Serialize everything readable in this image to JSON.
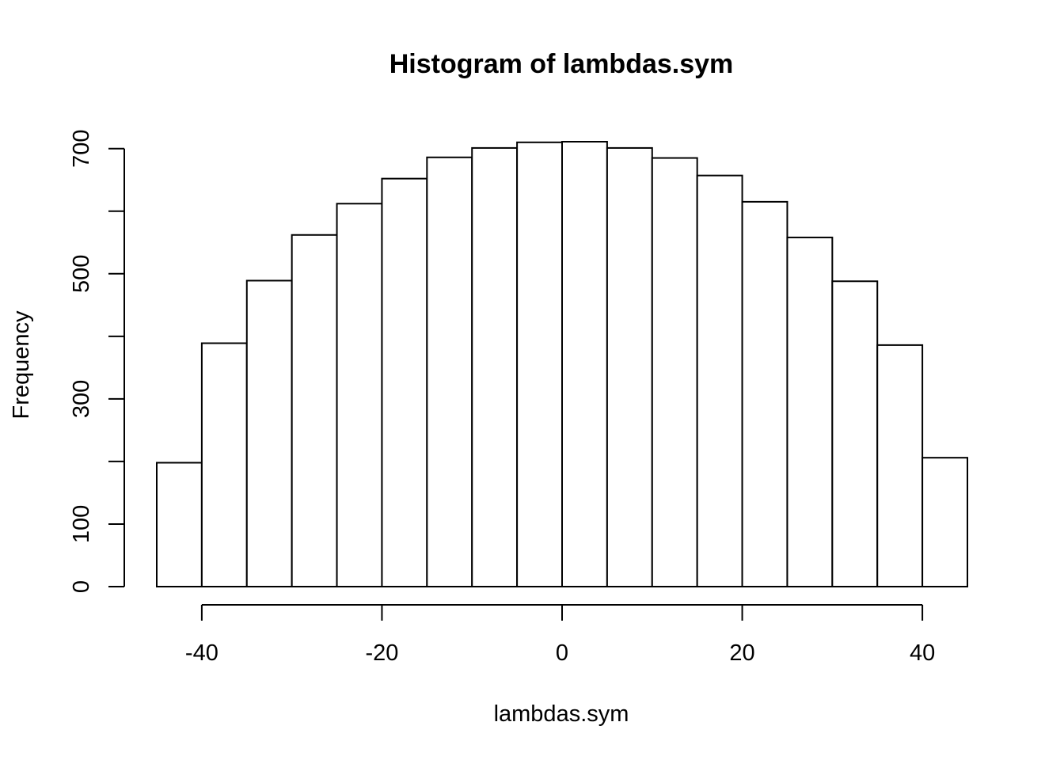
{
  "chart_data": {
    "type": "bar",
    "title": "Histogram of lambdas.sym",
    "xlabel": "lambdas.sym",
    "ylabel": "Frequency",
    "bin_edges": [
      -45,
      -40,
      -35,
      -30,
      -25,
      -20,
      -15,
      -10,
      -5,
      0,
      5,
      10,
      15,
      20,
      25,
      30,
      35,
      40,
      45
    ],
    "values": [
      198,
      389,
      489,
      562,
      612,
      652,
      686,
      701,
      710,
      711,
      701,
      685,
      657,
      615,
      558,
      488,
      386,
      206
    ],
    "xlim": [
      -45,
      45
    ],
    "ylim": [
      0,
      711
    ],
    "x_ticks": [
      -40,
      -20,
      0,
      20,
      40
    ],
    "x_tick_labels": [
      "-40",
      "-20",
      "0",
      "20",
      "40"
    ],
    "y_ticks": [
      0,
      100,
      200,
      300,
      400,
      500,
      600,
      700
    ],
    "y_tick_labels": [
      "0",
      "100",
      "",
      "300",
      "",
      "500",
      "",
      "700"
    ],
    "grid": false,
    "colors": {
      "bar_fill": "#ffffff",
      "bar_stroke": "#000000"
    }
  }
}
